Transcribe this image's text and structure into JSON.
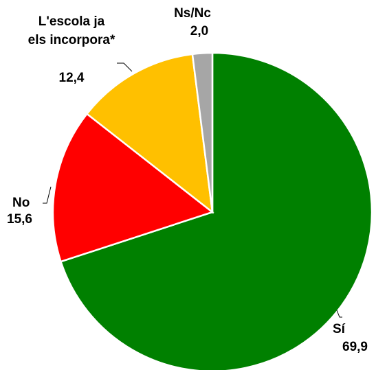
{
  "chart_data": {
    "type": "pie",
    "categories": [
      "Sí",
      "No",
      "L'escola ja els incorpora*",
      "Ns/Nc"
    ],
    "values": [
      69.9,
      15.6,
      12.4,
      2.0
    ],
    "value_labels": [
      "69,9",
      "15,6",
      "12,4",
      "2,0"
    ],
    "colors": [
      "#008000",
      "#ff0000",
      "#ffc000",
      "#a6a6a6"
    ]
  }
}
